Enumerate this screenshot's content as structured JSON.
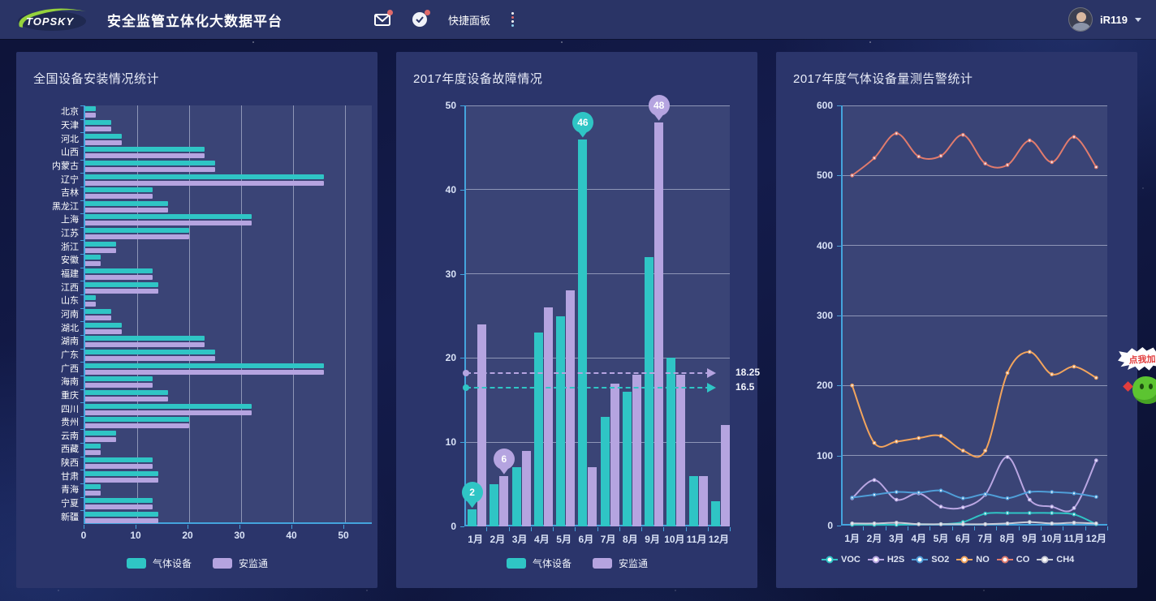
{
  "topbar": {
    "logo_text": "TOPSKY",
    "title": "安全监管立体化大数据平台",
    "quick_panel_label": "快捷面板",
    "username": "iR119",
    "icons": [
      "mail-icon",
      "check-circle-icon",
      "more-dots-icon",
      "caret-down-icon"
    ]
  },
  "colors": {
    "topbar_bg": "#2a3466",
    "panel_bg": "#2b356b",
    "axis_blue": "#44a4dd",
    "teal": "#2fc5c5",
    "purple": "#b5a4e0",
    "badge_red": "#e06a6a",
    "logo_green": "#95d23c"
  },
  "charts": {
    "installation": {
      "title": "全国设备安装情况统计",
      "type": "bar-horizontal",
      "xlim": [
        0,
        50
      ],
      "x_ticks": [
        0,
        10,
        20,
        30,
        40,
        50
      ],
      "categories": [
        "北京",
        "天津",
        "河北",
        "山西",
        "内蒙古",
        "辽宁",
        "吉林",
        "黑龙江",
        "上海",
        "江苏",
        "浙江",
        "安徽",
        "福建",
        "江西",
        "山东",
        "河南",
        "湖北",
        "湖南",
        "广东",
        "广西",
        "海南",
        "重庆",
        "四川",
        "贵州",
        "云南",
        "西藏",
        "陕西",
        "甘肃",
        "青海",
        "宁夏",
        "新疆"
      ],
      "series": [
        {
          "name": "气体设备",
          "color": "#2fc5c5",
          "values": [
            2,
            5,
            7,
            23,
            25,
            46,
            13,
            16,
            32,
            20,
            6,
            3,
            13,
            14,
            2,
            5,
            7,
            23,
            25,
            46,
            13,
            16,
            32,
            20,
            6,
            3,
            13,
            14,
            3,
            13,
            14
          ]
        },
        {
          "name": "安监通",
          "color": "#b5a4e0",
          "values": [
            2,
            5,
            7,
            23,
            25,
            46,
            13,
            16,
            32,
            20,
            6,
            3,
            13,
            14,
            2,
            5,
            7,
            23,
            25,
            46,
            13,
            16,
            32,
            20,
            6,
            3,
            13,
            14,
            3,
            13,
            14
          ]
        }
      ]
    },
    "faults": {
      "title": "2017年度设备故障情况",
      "type": "bar",
      "ylim": [
        0,
        50
      ],
      "y_ticks": [
        0,
        10,
        20,
        30,
        40,
        50
      ],
      "categories": [
        "1月",
        "2月",
        "3月",
        "4月",
        "5月",
        "6月",
        "7月",
        "8月",
        "9月",
        "10月",
        "11月",
        "12月"
      ],
      "series": [
        {
          "name": "气体设备",
          "color": "#2fc5c5",
          "values": [
            2,
            5,
            7,
            23,
            25,
            46,
            13,
            16,
            32,
            20,
            6,
            3
          ]
        },
        {
          "name": "安监通",
          "color": "#b5a4e0",
          "values": [
            24,
            6,
            9,
            26,
            28,
            7,
            17,
            18,
            48,
            18,
            6,
            12
          ]
        }
      ],
      "markers": [
        {
          "series": 0,
          "month": "1月",
          "value": 2
        },
        {
          "series": 1,
          "month": "2月",
          "value": 6
        },
        {
          "series": 0,
          "month": "6月",
          "value": 46
        },
        {
          "series": 1,
          "month": "9月",
          "value": 48
        }
      ],
      "average_lines": [
        {
          "series": "安监通",
          "value": 18.25,
          "label": "18.25",
          "color": "#b5a4e0"
        },
        {
          "series": "气体设备",
          "value": 16.5,
          "label": "16.5",
          "color": "#2fc5c5"
        }
      ]
    },
    "gas": {
      "title": "2017年度气体设备量测告警统计",
      "type": "line",
      "ylim": [
        0,
        600
      ],
      "y_ticks": [
        0,
        100,
        200,
        300,
        400,
        500,
        600
      ],
      "x": [
        "1月",
        "2月",
        "3月",
        "4月",
        "5月",
        "6月",
        "7月",
        "8月",
        "9月",
        "10月",
        "11月",
        "12月"
      ],
      "series": [
        {
          "name": "VOC",
          "color": "#2fc5c5",
          "values": [
            1,
            1,
            1,
            2,
            2,
            5,
            17,
            18,
            18,
            18,
            16,
            2
          ]
        },
        {
          "name": "H2S",
          "color": "#b9a6e2",
          "values": [
            39,
            65,
            37,
            46,
            27,
            26,
            44,
            98,
            37,
            27,
            25,
            93
          ]
        },
        {
          "name": "SO2",
          "color": "#4f9ed8",
          "values": [
            40,
            44,
            48,
            47,
            50,
            39,
            45,
            39,
            48,
            48,
            46,
            41
          ]
        },
        {
          "name": "NO",
          "color": "#f2a45c",
          "values": [
            200,
            118,
            120,
            125,
            128,
            107,
            107,
            218,
            248,
            216,
            227,
            211
          ]
        },
        {
          "name": "CO",
          "color": "#e07b6d",
          "values": [
            500,
            525,
            560,
            527,
            528,
            558,
            517,
            515,
            550,
            519,
            555,
            512
          ]
        },
        {
          "name": "CH4",
          "color": "#c9cbd6",
          "values": [
            3,
            3,
            4,
            2,
            2,
            2,
            2,
            3,
            5,
            3,
            4,
            3
          ]
        }
      ]
    }
  },
  "floating_widget": {
    "badge_text": "点我加"
  }
}
